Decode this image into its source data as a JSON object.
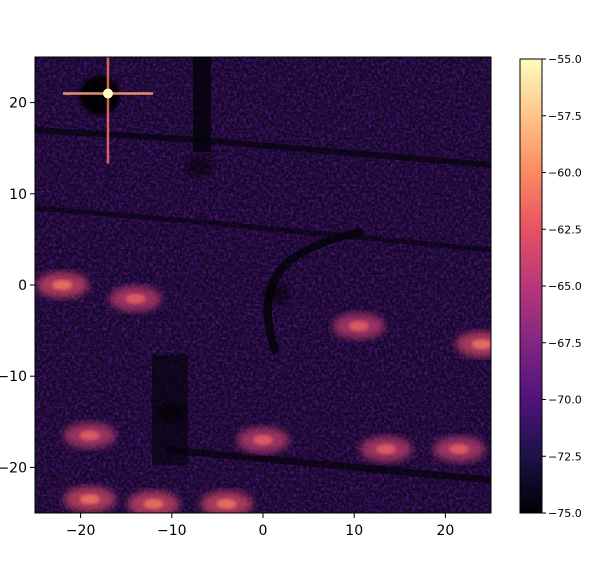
{
  "chart_data": {
    "type": "heatmap",
    "title": "",
    "xlabel": "",
    "ylabel": "",
    "xlim": [
      -25,
      25
    ],
    "ylim": [
      -25,
      25
    ],
    "x_ticks": [
      -20,
      -10,
      0,
      10,
      20
    ],
    "y_ticks": [
      20,
      10,
      0,
      -10,
      -20
    ],
    "x_tick_labels": [
      "−20",
      "−10",
      "0",
      "10",
      "20"
    ],
    "y_tick_labels": [
      "20",
      "10",
      "0",
      "−10",
      "−20"
    ],
    "colormap": "magma",
    "colorbar": {
      "vmin": -75.0,
      "vmax": -55.0,
      "ticks": [
        -55.0,
        -57.5,
        -60.0,
        -62.5,
        -65.0,
        -67.5,
        -70.0,
        -72.5,
        -75.0
      ],
      "tick_labels": [
        "−55.0",
        "−57.5",
        "−60.0",
        "−62.5",
        "−65.0",
        "−67.5",
        "−70.0",
        "−72.5",
        "−75.0"
      ]
    },
    "features": [
      {
        "kind": "point",
        "x": -17,
        "y": 21,
        "level": -55
      },
      {
        "kind": "blob",
        "x": -14,
        "y": -1.5,
        "level": -64
      },
      {
        "kind": "blob",
        "x": -22,
        "y": 0,
        "level": -63
      },
      {
        "kind": "blob",
        "x": -19,
        "y": -16.5,
        "level": -64
      },
      {
        "kind": "blob",
        "x": -19,
        "y": -23.5,
        "level": -63
      },
      {
        "kind": "blob",
        "x": -12,
        "y": -24,
        "level": -63
      },
      {
        "kind": "blob",
        "x": -4,
        "y": -24,
        "level": -63
      },
      {
        "kind": "blob",
        "x": 0,
        "y": -17,
        "level": -64
      },
      {
        "kind": "blob",
        "x": 10.5,
        "y": -4.5,
        "level": -64
      },
      {
        "kind": "blob",
        "x": 13.5,
        "y": -18,
        "level": -64
      },
      {
        "kind": "blob",
        "x": 21.5,
        "y": -18,
        "level": -64
      },
      {
        "kind": "blob",
        "x": 24,
        "y": -6.5,
        "level": -63
      },
      {
        "kind": "shadow",
        "x": -7,
        "y": 13,
        "level": -75
      },
      {
        "kind": "shadow",
        "x": -10,
        "y": -14,
        "level": -75
      },
      {
        "kind": "shadow",
        "x": 1.5,
        "y": -1,
        "level": -75
      }
    ]
  }
}
